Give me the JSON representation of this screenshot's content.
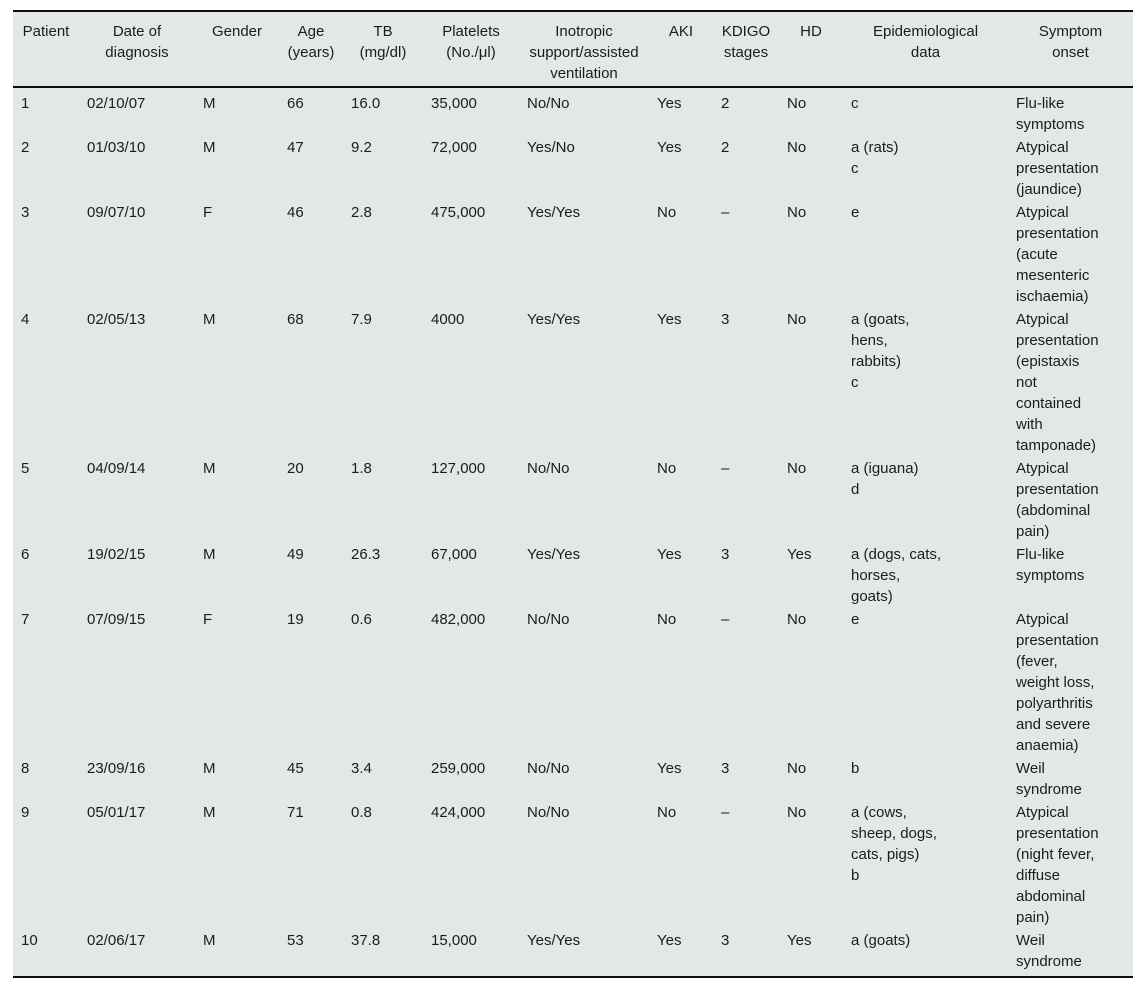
{
  "colors": {
    "table_background": "#e2e7e8",
    "rule": "#0d0d0d",
    "text": "#1c1c1c"
  },
  "table": {
    "columns": [
      {
        "key": "patient",
        "label": "Patient"
      },
      {
        "key": "date",
        "label": "Date of\ndiagnosis"
      },
      {
        "key": "gender",
        "label": "Gender"
      },
      {
        "key": "age",
        "label": "Age\n(years)"
      },
      {
        "key": "tb",
        "label": "TB\n(mg/dl)"
      },
      {
        "key": "platelets",
        "label": "Platelets\n(No./μl)"
      },
      {
        "key": "inotropic",
        "label": "Inotropic\nsupport/assisted\nventilation"
      },
      {
        "key": "aki",
        "label": "AKI"
      },
      {
        "key": "kdigo",
        "label": "KDIGO\nstages"
      },
      {
        "key": "hd",
        "label": "HD"
      },
      {
        "key": "epi",
        "label": "Epidemiological\ndata"
      },
      {
        "key": "symptom",
        "label": "Symptom\nonset"
      }
    ],
    "rows": [
      [
        "1",
        "02/10/07",
        "M",
        "66",
        "16.0",
        "35,000",
        "No/No",
        "Yes",
        "2",
        "No",
        "c",
        "Flu-like\nsymptoms"
      ],
      [
        "2",
        "01/03/10",
        "M",
        "47",
        "9.2",
        "72,000",
        "Yes/No",
        "Yes",
        "2",
        "No",
        "a (rats)\nc",
        "Atypical\npresentation\n(jaundice)"
      ],
      [
        "3",
        "09/07/10",
        "F",
        "46",
        "2.8",
        "475,000",
        "Yes/Yes",
        "No",
        "–",
        "No",
        "e",
        "Atypical\npresentation\n(acute\nmesenteric\nischaemia)"
      ],
      [
        "4",
        "02/05/13",
        "M",
        "68",
        "7.9",
        "4000",
        "Yes/Yes",
        "Yes",
        "3",
        "No",
        "a (goats,\nhens,\nrabbits)\nc",
        "Atypical\npresentation\n(epistaxis\nnot\ncontained\nwith\ntamponade)"
      ],
      [
        "5",
        "04/09/14",
        "M",
        "20",
        "1.8",
        "127,000",
        "No/No",
        "No",
        "–",
        "No",
        "a (iguana)\nd",
        "Atypical\npresentation\n(abdominal\npain)"
      ],
      [
        "6",
        "19/02/15",
        "M",
        "49",
        "26.3",
        "67,000",
        "Yes/Yes",
        "Yes",
        "3",
        "Yes",
        "a (dogs, cats,\nhorses,\ngoats)",
        "Flu-like\nsymptoms"
      ],
      [
        "7",
        "07/09/15",
        "F",
        "19",
        "0.6",
        "482,000",
        "No/No",
        "No",
        "–",
        "No",
        "e",
        "Atypical\npresentation\n(fever,\nweight loss,\npolyarthritis\nand severe\nanaemia)"
      ],
      [
        "8",
        "23/09/16",
        "M",
        "45",
        "3.4",
        "259,000",
        "No/No",
        "Yes",
        "3",
        "No",
        "b",
        "Weil\nsyndrome"
      ],
      [
        "9",
        "05/01/17",
        "M",
        "71",
        "0.8",
        "424,000",
        "No/No",
        "No",
        "–",
        "No",
        "a (cows,\nsheep, dogs,\ncats, pigs)\nb",
        "Atypical\npresentation\n(night fever,\ndiffuse\nabdominal\npain)"
      ],
      [
        "10",
        "02/06/17",
        "M",
        "53",
        "37.8",
        "15,000",
        "Yes/Yes",
        "Yes",
        "3",
        "Yes",
        "a (goats)",
        "Weil\nsyndrome"
      ]
    ]
  }
}
